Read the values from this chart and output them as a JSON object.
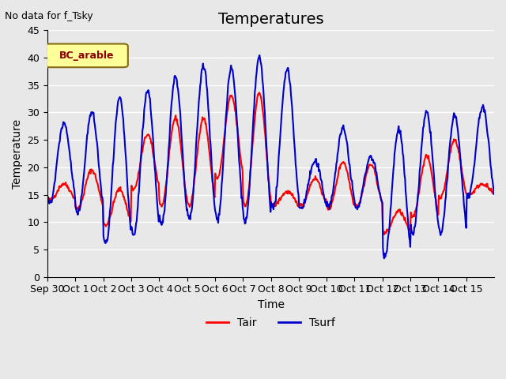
{
  "title": "Temperatures",
  "ylabel": "Temperature",
  "xlabel": "Time",
  "top_left_note": "No data for f_Tsky",
  "legend_box_label": "BC_arable",
  "ylim": [
    0,
    45
  ],
  "yticks": [
    0,
    5,
    10,
    15,
    20,
    25,
    30,
    35,
    40,
    45
  ],
  "xtick_labels": [
    "Sep 30",
    "Oct 1",
    "Oct 2",
    "Oct 3",
    "Oct 4",
    "Oct 5",
    "Oct 6",
    "Oct 7",
    "Oct 8",
    "Oct 9",
    "Oct 10",
    "Oct 11",
    "Oct 12",
    "Oct 13",
    "Oct 14",
    "Oct 15"
  ],
  "tair_color": "#FF0000",
  "tsurf_color": "#0000CC",
  "background_color": "#E8E8E8",
  "title_fontsize": 14,
  "axis_label_fontsize": 10,
  "tick_fontsize": 9,
  "line_width": 1.5,
  "tair_peaks": [
    17,
    19.5,
    16,
    26,
    29,
    29,
    33,
    33.5,
    15.5,
    18,
    21,
    20.5,
    12,
    22,
    25,
    17
  ],
  "tair_troughs": [
    14,
    12.5,
    9.5,
    16,
    13,
    13,
    18,
    13,
    13,
    13,
    12.5,
    13,
    8,
    11,
    14.5,
    15
  ],
  "tsurf_peaks": [
    28,
    30,
    32.5,
    34,
    36.5,
    38.5,
    38,
    40,
    38,
    21,
    27,
    22,
    27,
    30,
    29.5,
    31
  ],
  "tsurf_troughs": [
    13.5,
    11.5,
    6,
    7.5,
    9.5,
    10.5,
    10.5,
    10,
    12.5,
    12.5,
    13,
    12.5,
    4,
    8,
    8,
    14.5
  ]
}
